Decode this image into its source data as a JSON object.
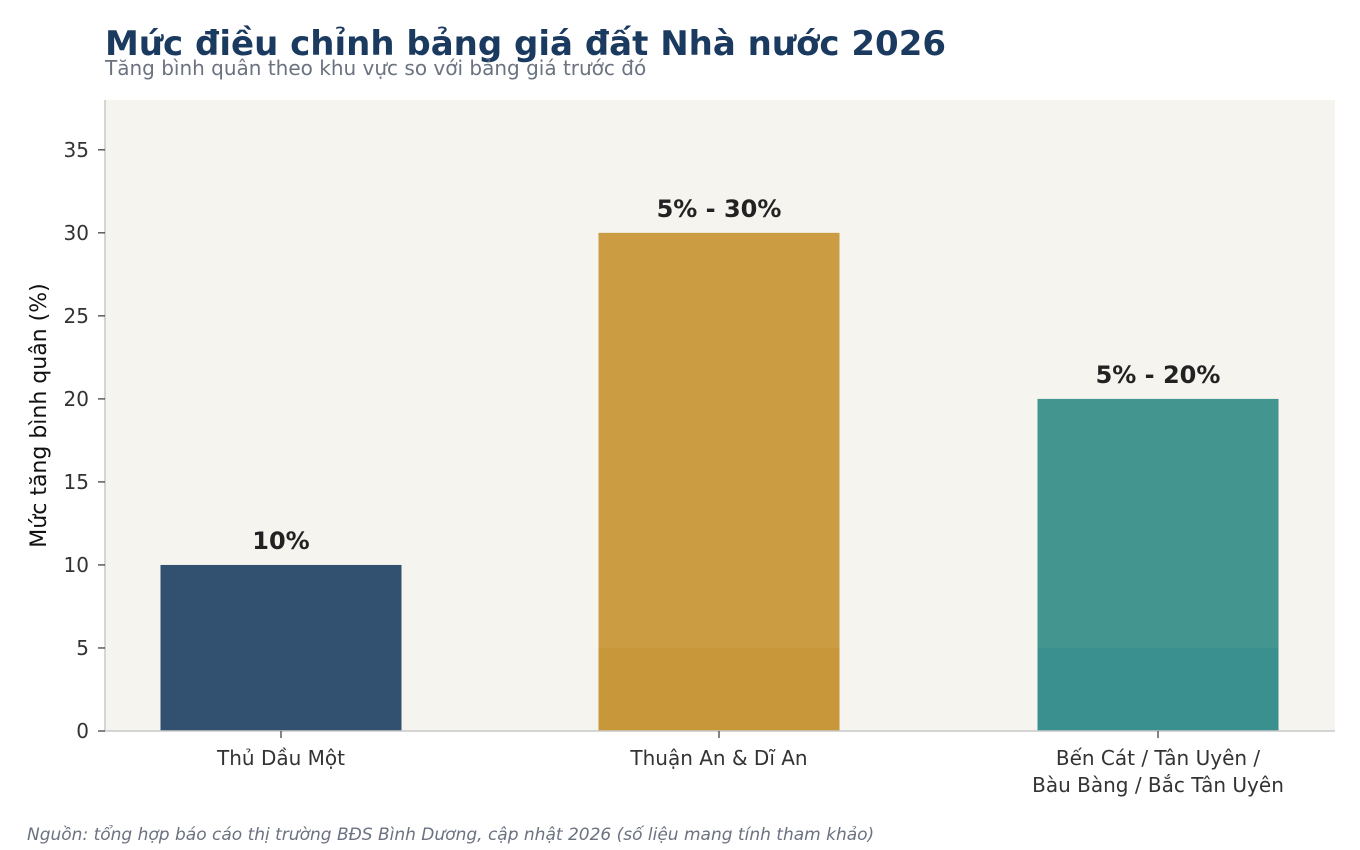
{
  "header": {
    "title": "Mức điều chỉnh bảng giá đất Nhà nước 2026",
    "subtitle": "Tăng bình quân theo khu vực so với bảng giá trước đó"
  },
  "footer": {
    "source": "Nguồn: tổng hợp báo cáo thị trường BĐS Bình Dương, cập nhật 2026 (số liệu mang tính tham khảo)"
  },
  "chart_data": {
    "type": "bar",
    "title": "Mức điều chỉnh bảng giá đất Nhà nước 2026",
    "subtitle": "Tăng bình quân theo khu vực so với bảng giá trước đó",
    "xlabel": "",
    "ylabel": "Mức tăng bình quân (%)",
    "ylim": [
      0,
      38
    ],
    "yticks": [
      0,
      5,
      10,
      15,
      20,
      25,
      30,
      35
    ],
    "grid": false,
    "categories": [
      [
        "Thủ Dầu Một"
      ],
      [
        "Thuận An & Dĩ An"
      ],
      [
        "Bến Cát / Tân Uyên /",
        "Bàu Bàng / Bắc Tân Uyên"
      ]
    ],
    "values": [
      10,
      30,
      20
    ],
    "range_lower": [
      null,
      5,
      5
    ],
    "data_labels": [
      "10%",
      "5% - 30%",
      "5% - 20%"
    ],
    "colors": [
      "#32506f",
      "#cc9c42",
      "#43958f"
    ],
    "range_colors": [
      "#32506f",
      "#c8973a",
      "#3a908e"
    ],
    "plot_background": "#f5f4ef"
  }
}
